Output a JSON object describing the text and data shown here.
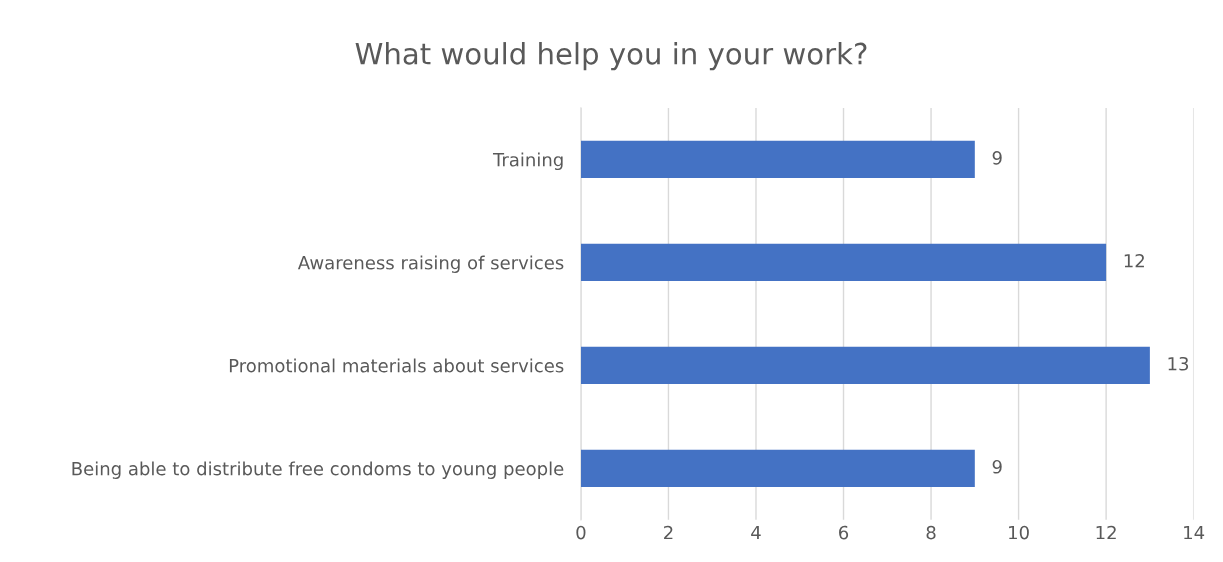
{
  "chart_data": {
    "type": "bar",
    "orientation": "horizontal",
    "title": "What would help you in your work?",
    "categories": [
      "Training",
      "Awareness raising of services",
      "Promotional materials about services",
      "Being able to distribute free condoms to young people"
    ],
    "values": [
      9,
      12,
      13,
      9
    ],
    "color": "#4472c4",
    "xlim": [
      0,
      14
    ],
    "xticks": [
      0,
      2,
      4,
      6,
      8,
      10,
      12,
      14
    ],
    "grid": "x",
    "data_labels": true
  }
}
